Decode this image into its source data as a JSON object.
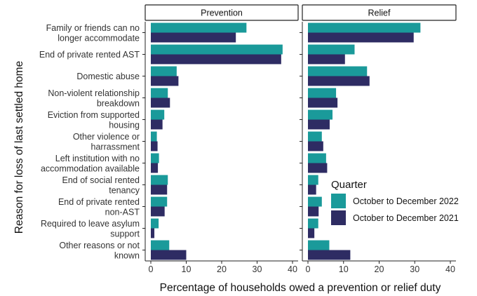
{
  "chart_data": {
    "type": "bar",
    "orientation": "horizontal",
    "ylabel": "Reason for loss of last settled home",
    "xlabel": "Percentage of households owed a prevention or relief duty",
    "xlim": [
      0,
      40
    ],
    "xticks": [
      0,
      10,
      20,
      30,
      40
    ],
    "grid": false,
    "legend": {
      "title": "Quarter",
      "placement": "right",
      "entries": [
        "October to December 2022",
        "October to December 2021"
      ]
    },
    "colors": {
      "October to December 2022": "#1a9a9a",
      "October to December 2021": "#2e2c63"
    },
    "categories": [
      [
        "Family or friends can no",
        "longer accommodate"
      ],
      [
        "End of private rented AST"
      ],
      [
        "Domestic abuse"
      ],
      [
        "Non-violent relationship",
        "breakdown"
      ],
      [
        "Eviction from supported",
        "housing"
      ],
      [
        "Other violence or",
        "harrassment"
      ],
      [
        "Left institution with no",
        "accommodation available"
      ],
      [
        "End of social rented",
        "tenancy"
      ],
      [
        "End of private rented",
        "non-AST"
      ],
      [
        "Required to leave asylum",
        "support"
      ],
      [
        "Other reasons or not",
        "known"
      ]
    ],
    "panels": [
      {
        "label": "Prevention",
        "series": [
          {
            "name": "October to December 2022",
            "values": [
              27,
              37.2,
              7.3,
              4.8,
              3.8,
              1.7,
              2.3,
              4.8,
              4.6,
              2.2,
              5.2
            ]
          },
          {
            "name": "October to December 2021",
            "values": [
              24,
              36.8,
              7.8,
              5.4,
              3.3,
              1.9,
              2.0,
              4.6,
              3.9,
              1.0,
              10.0
            ]
          }
        ]
      },
      {
        "label": "Relief",
        "series": [
          {
            "name": "October to December 2022",
            "values": [
              31.6,
              13.1,
              16.6,
              7.9,
              6.9,
              3.9,
              5.1,
              2.9,
              3.9,
              2.9,
              6.0
            ]
          },
          {
            "name": "October to December 2021",
            "values": [
              29.7,
              10.4,
              17.3,
              8.3,
              6.1,
              4.3,
              5.4,
              2.3,
              3.0,
              1.8,
              11.9
            ]
          }
        ]
      }
    ]
  }
}
